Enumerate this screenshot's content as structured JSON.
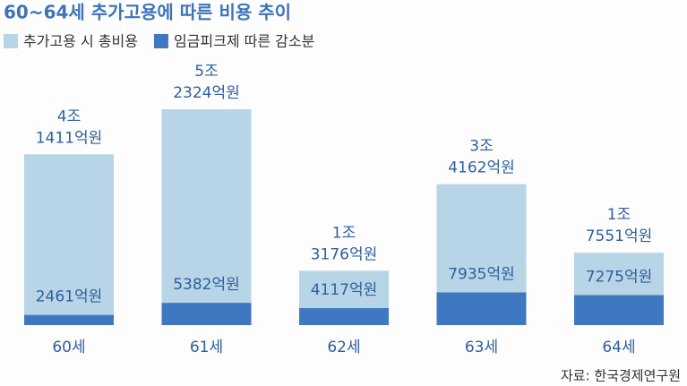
{
  "chart_data": {
    "type": "bar",
    "title": "60~64세 추가고용에 따른 비용 추이",
    "categories": [
      "60세",
      "61세",
      "62세",
      "63세",
      "64세"
    ],
    "series": [
      {
        "name": "추가고용 시 총비용",
        "color": "#b8d4e7",
        "values": [
          41411,
          52324,
          13176,
          34162,
          17551
        ],
        "value_labels": [
          [
            "4조",
            "1411억원"
          ],
          [
            "5조",
            "2324억원"
          ],
          [
            "1조",
            "3176억원"
          ],
          [
            "3조",
            "4162억원"
          ],
          [
            "1조",
            "7551억원"
          ]
        ]
      },
      {
        "name": "임금피크제 따른 감소분",
        "color": "#3f78c1",
        "values": [
          2461,
          5382,
          4117,
          7935,
          7275
        ],
        "value_labels": [
          "2461억원",
          "5382억원",
          "4117억원",
          "7935억원",
          "7275억원"
        ]
      }
    ],
    "source": "자료: 한국경제연구원"
  }
}
